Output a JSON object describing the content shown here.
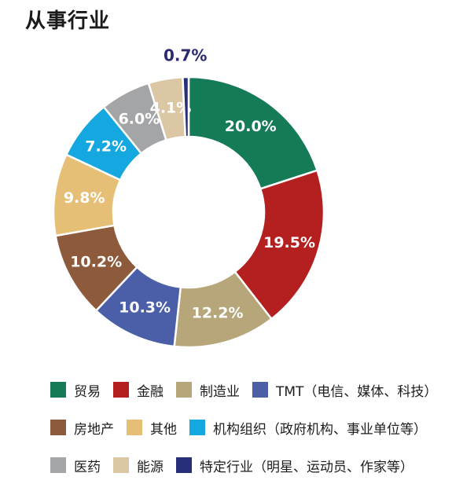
{
  "chart_data": {
    "type": "donut",
    "title": "从事行业",
    "slices": [
      {
        "name": "贸易",
        "value": 20.0,
        "label": "20.0%",
        "color": "#157a56"
      },
      {
        "name": "金融",
        "value": 19.5,
        "label": "19.5%",
        "color": "#b3201f"
      },
      {
        "name": "制造业",
        "value": 12.2,
        "label": "12.2%",
        "color": "#b6a679"
      },
      {
        "name": "TMT（电信、媒体、科技）",
        "value": 10.3,
        "label": "10.3%",
        "color": "#4a5fa8"
      },
      {
        "name": "房地产",
        "value": 10.2,
        "label": "10.2%",
        "color": "#8e5a3c"
      },
      {
        "name": "其他",
        "value": 9.8,
        "label": "9.8%",
        "color": "#e5bf76"
      },
      {
        "name": "机构组织（政府机构、事业单位等）",
        "value": 7.2,
        "label": "7.2%",
        "color": "#14a7e0"
      },
      {
        "name": "医药",
        "value": 6.0,
        "label": "6.0%",
        "color": "#a4a5a7"
      },
      {
        "name": "能源",
        "value": 4.1,
        "label": "4.1%",
        "color": "#dcc7a5"
      },
      {
        "name": "特定行业（明星、运动员、作家等）",
        "value": 0.7,
        "label": "0.7%",
        "color": "#262f78"
      }
    ],
    "legend_rows": [
      [
        0,
        1,
        2,
        3
      ],
      [
        4,
        5,
        6
      ],
      [
        7,
        8,
        9
      ]
    ],
    "legend_position": "bottom"
  }
}
